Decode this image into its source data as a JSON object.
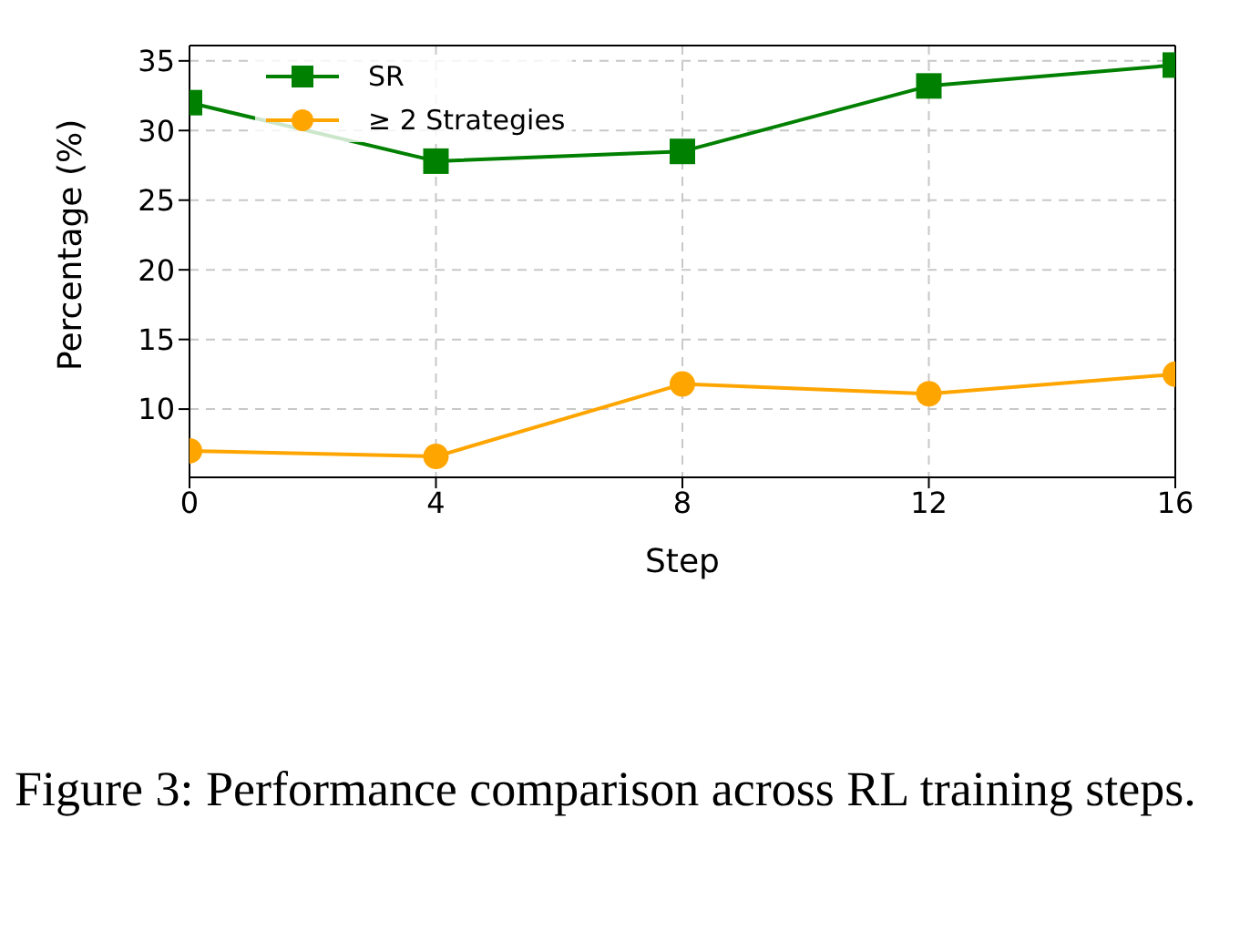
{
  "chart_data": {
    "type": "line",
    "xlabel": "Step",
    "ylabel": "Percentage (%)",
    "x": [
      0,
      4,
      8,
      12,
      16
    ],
    "xlim": [
      0,
      16
    ],
    "xticks": [
      0,
      4,
      8,
      12,
      16
    ],
    "ylim": [
      5.1,
      36.1
    ],
    "yticks": [
      10,
      15,
      20,
      25,
      30,
      35
    ],
    "grid": true,
    "legend": "top left",
    "series": [
      {
        "name": "SR",
        "color": "#008000",
        "marker": "square",
        "values": [
          32.0,
          27.8,
          28.5,
          33.2,
          34.7
        ]
      },
      {
        "name": "≥ 2 Strategies",
        "color": "#ffa500",
        "marker": "circle",
        "values": [
          7.0,
          6.6,
          11.8,
          11.1,
          12.5
        ]
      }
    ],
    "annotations": [
      "Figure 3: Performance comparison across RL training steps."
    ]
  }
}
